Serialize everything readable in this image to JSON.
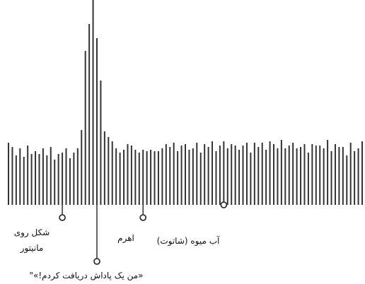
{
  "chart_data": {
    "type": "bar",
    "title": "",
    "xlabel": "",
    "ylabel": "",
    "grid": false,
    "legend": "none",
    "bar_color": "#333333",
    "ylim": [
      0,
      290
    ],
    "values": [
      88,
      82,
      70,
      80,
      68,
      84,
      72,
      76,
      72,
      80,
      70,
      82,
      64,
      72,
      74,
      80,
      66,
      74,
      80,
      106,
      218,
      256,
      290,
      236,
      176,
      104,
      96,
      90,
      80,
      74,
      78,
      86,
      84,
      78,
      74,
      78,
      76,
      78,
      76,
      76,
      80,
      86,
      82,
      88,
      76,
      84,
      86,
      78,
      80,
      88,
      74,
      86,
      82,
      90,
      76,
      84,
      90,
      80,
      86,
      84,
      78,
      84,
      88,
      74,
      88,
      82,
      88,
      78,
      90,
      86,
      80,
      92,
      80,
      84,
      88,
      80,
      82,
      86,
      74,
      86,
      84,
      84,
      80,
      92,
      76,
      86,
      82,
      82,
      70,
      88,
      76,
      80,
      90
    ],
    "annotations": [
      {
        "label_lines": [
          "شکل روی",
          "مانیتور"
        ],
        "bar_index": 14
      },
      {
        "label_lines": [
          "«من یک پاداش دریافت کردم!»\""
        ],
        "bar_index": 23
      },
      {
        "label_lines": [
          "اهرم"
        ],
        "bar_index": 35
      },
      {
        "label_lines": [
          "آب میوه (شاتوت)"
        ],
        "bar_index": 56
      }
    ]
  }
}
